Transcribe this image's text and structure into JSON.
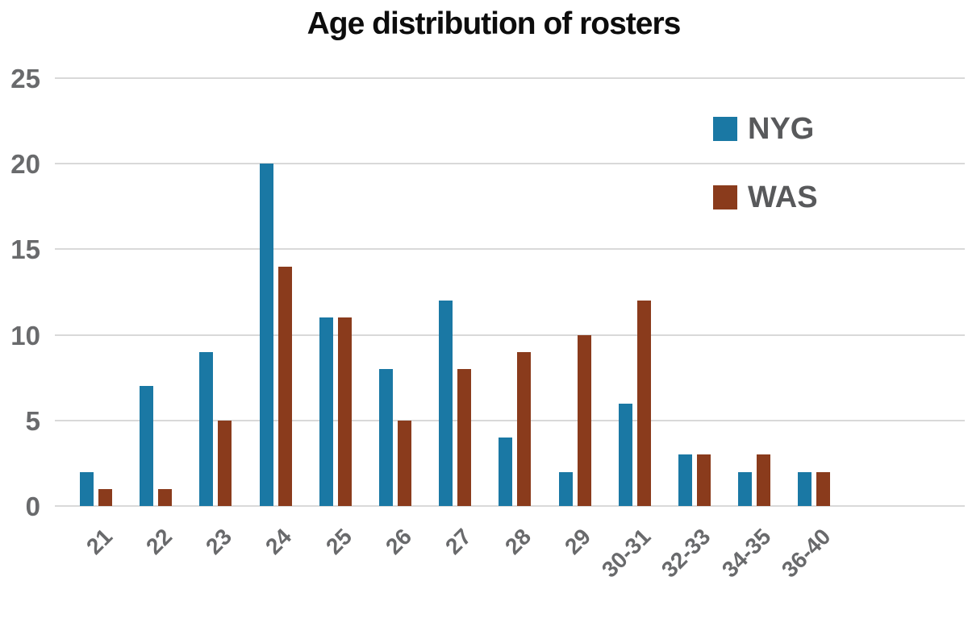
{
  "title": "Age distribution of rosters",
  "colors": {
    "nyg_blue": "#1a78a4",
    "was_brown": "#8a3b1c",
    "gridline": "#d9d9d9",
    "axis_text": "#696a6c",
    "legend_text": "#58595b",
    "title_text": "#0d0d0d",
    "background": "#ffffff"
  },
  "legend": {
    "items": [
      {
        "label": "NYG",
        "color": "#1a78a4"
      },
      {
        "label": "WAS",
        "color": "#8a3b1c"
      }
    ]
  },
  "chart_data": {
    "type": "bar",
    "title": "Age distribution of rosters",
    "categories": [
      "21",
      "22",
      "23",
      "24",
      "25",
      "26",
      "27",
      "28",
      "29",
      "30-31",
      "32-33",
      "34-35",
      "36-40"
    ],
    "series": [
      {
        "name": "NYG",
        "color": "#1a78a4",
        "values": [
          2,
          7,
          9,
          20,
          11,
          8,
          12,
          4,
          2,
          6,
          3,
          2,
          2
        ]
      },
      {
        "name": "WAS",
        "color": "#8a3b1c",
        "values": [
          1,
          1,
          5,
          14,
          11,
          5,
          8,
          9,
          10,
          12,
          3,
          3,
          2
        ]
      }
    ],
    "xlabel": "",
    "ylabel": "",
    "ylim": [
      0,
      25
    ],
    "yticks": [
      0,
      5,
      10,
      15,
      20,
      25
    ],
    "grid": "horizontal",
    "legend_position": "top-right"
  }
}
